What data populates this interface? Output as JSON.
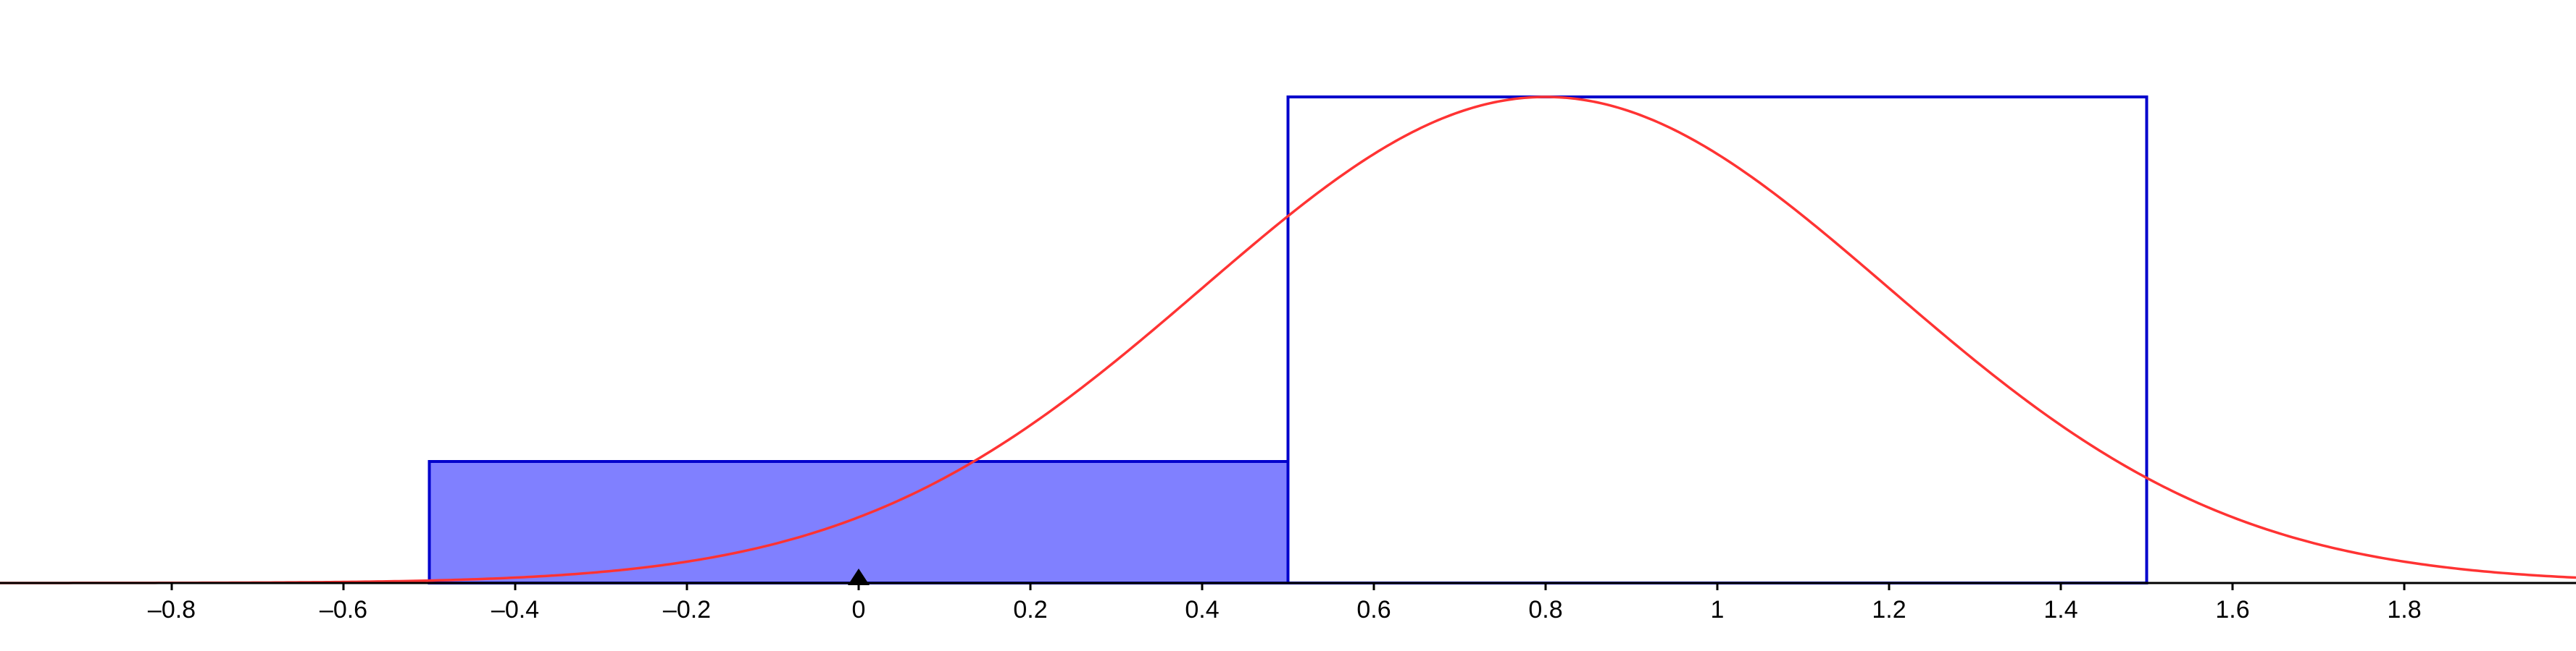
{
  "chart_data": {
    "type": "bar",
    "title": "",
    "xlabel": "",
    "ylabel": "",
    "xlim": [
      -1.0,
      2.0
    ],
    "ylim": [
      0,
      1.3
    ],
    "x_ticks": [
      {
        "value": -0.8,
        "label": "–0.8"
      },
      {
        "value": -0.6,
        "label": "–0.6"
      },
      {
        "value": -0.4,
        "label": "–0.4"
      },
      {
        "value": -0.2,
        "label": "–0.2"
      },
      {
        "value": 0,
        "label": "0"
      },
      {
        "value": 0.2,
        "label": "0.2"
      },
      {
        "value": 0.4,
        "label": "0.4"
      },
      {
        "value": 0.6,
        "label": "0.6"
      },
      {
        "value": 0.8,
        "label": "0.8"
      },
      {
        "value": 1,
        "label": "1"
      },
      {
        "value": 1.2,
        "label": "1.2"
      },
      {
        "value": 1.4,
        "label": "1.4"
      },
      {
        "value": 1.6,
        "label": "1.6"
      },
      {
        "value": 1.8,
        "label": "1.8"
      }
    ],
    "bars": [
      {
        "x_start": -0.5,
        "x_end": 0.5,
        "height": 0.2,
        "filled": true
      },
      {
        "x_start": 0.5,
        "x_end": 1.5,
        "height": 0.8,
        "filled": false
      }
    ],
    "curve": {
      "type": "normal",
      "mean": 0.8,
      "sd": 0.4,
      "scale": 0.8
    },
    "marker_x": 0,
    "grid": false,
    "colors": {
      "bar_stroke": "#0000cc",
      "bar_fill": "#8080ff",
      "curve": "#ff3333",
      "axis": "#000000",
      "marker": "#000000"
    }
  }
}
